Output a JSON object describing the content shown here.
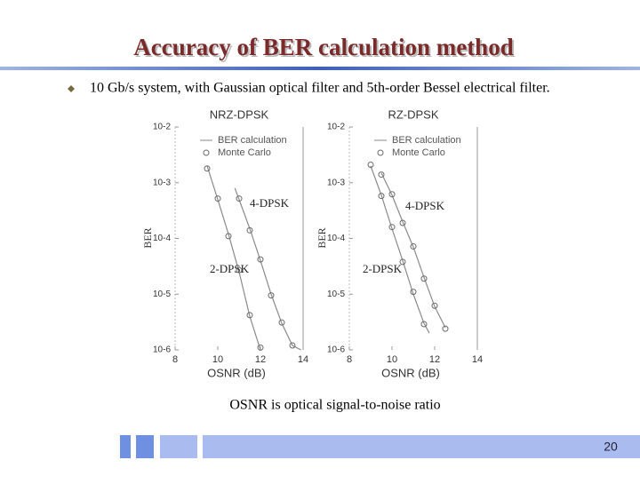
{
  "slide": {
    "title": "Accuracy of BER calculation method",
    "bullet": "10 Gb/s system, with Gaussian optical filter and 5th-order Bessel electrical filter.",
    "caption": "OSNR is optical signal-to-noise ratio",
    "page_number": "20"
  },
  "chart_data": [
    {
      "type": "line",
      "title": "NRZ-DPSK",
      "x_label": "OSNR (dB)",
      "y_label": "BER",
      "log_y": true,
      "xlim": [
        8,
        14
      ],
      "xticks": [
        8,
        10,
        12,
        14
      ],
      "ylim": [
        1e-06,
        0.01
      ],
      "yticks": [
        {
          "value": 0.01,
          "label": "10-2"
        },
        {
          "value": 0.001,
          "label": "10-3"
        },
        {
          "value": 0.0001,
          "label": "10-4"
        },
        {
          "value": 1e-05,
          "label": "10-5"
        },
        {
          "value": 1e-06,
          "label": "10-6"
        }
      ],
      "series": [
        {
          "name": "BER calculation",
          "curve": "2-DPSK",
          "mode": "line",
          "color": "#8a8a8a",
          "x": [
            9.5,
            10,
            10.5,
            11,
            11.5,
            12
          ],
          "values": [
            0.002,
            0.0005,
            0.00012,
            2.5e-05,
            4e-06,
            1e-06
          ]
        },
        {
          "name": "Monte Carlo",
          "mode": "markers",
          "color": "#6a6a6a",
          "x": [
            9.5,
            10,
            10.5,
            11,
            11.5,
            12
          ],
          "values": [
            0.0018,
            0.00052,
            0.00011,
            2.7e-05,
            4.2e-06,
            1.1e-06
          ]
        },
        {
          "name": "BER calculation",
          "curve": "4-DPSK",
          "mode": "line",
          "color": "#8a8a8a",
          "x": [
            10.8,
            11,
            11.5,
            12,
            12.5,
            13,
            13.5,
            13.9
          ],
          "values": [
            0.0008,
            0.0005,
            0.00015,
            4e-05,
            1e-05,
            3e-06,
            1.2e-06,
            1e-06
          ]
        },
        {
          "name": "Monte Carlo",
          "mode": "markers",
          "color": "#6a6a6a",
          "x": [
            11,
            11.5,
            12,
            12.5,
            13,
            13.5
          ],
          "values": [
            0.00052,
            0.00014,
            4.2e-05,
            9.5e-06,
            3.1e-06,
            1.2e-06
          ]
        }
      ]
    },
    {
      "type": "line",
      "title": "RZ-DPSK",
      "x_label": "OSNR (dB)",
      "y_label": "BER",
      "log_y": true,
      "xlim": [
        8,
        14
      ],
      "xticks": [
        8,
        10,
        12,
        14
      ],
      "ylim": [
        1e-06,
        0.01
      ],
      "yticks": [
        {
          "value": 0.01,
          "label": "10-2"
        },
        {
          "value": 0.001,
          "label": "10-3"
        },
        {
          "value": 0.0001,
          "label": "10-4"
        },
        {
          "value": 1e-05,
          "label": "10-5"
        },
        {
          "value": 1e-06,
          "label": "10-6"
        }
      ],
      "series": [
        {
          "name": "BER calculation",
          "curve": "2-DPSK",
          "mode": "line",
          "color": "#8a8a8a",
          "x": [
            9,
            9.5,
            10,
            10.5,
            11,
            11.5,
            11.75
          ],
          "values": [
            0.002,
            0.0006,
            0.00015,
            4e-05,
            1e-05,
            3e-06,
            2e-06
          ]
        },
        {
          "name": "Monte Carlo",
          "mode": "markers",
          "color": "#6a6a6a",
          "x": [
            9,
            9.5,
            10,
            10.5,
            11,
            11.5
          ],
          "values": [
            0.0021,
            0.00058,
            0.00016,
            3.8e-05,
            1.1e-05,
            2.9e-06
          ]
        },
        {
          "name": "BER calculation",
          "curve": "4-DPSK",
          "mode": "line",
          "color": "#8a8a8a",
          "x": [
            9.5,
            10,
            10.5,
            11,
            11.5,
            12,
            12.5
          ],
          "values": [
            0.0015,
            0.0006,
            0.0002,
            7e-05,
            2e-05,
            6e-06,
            2.5e-06
          ]
        },
        {
          "name": "Monte Carlo",
          "mode": "markers",
          "color": "#6a6a6a",
          "x": [
            9.5,
            10,
            10.5,
            11,
            11.5,
            12,
            12.5
          ],
          "values": [
            0.0014,
            0.00062,
            0.00019,
            7.2e-05,
            1.9e-05,
            6.2e-06,
            2.4e-06
          ]
        }
      ]
    }
  ]
}
